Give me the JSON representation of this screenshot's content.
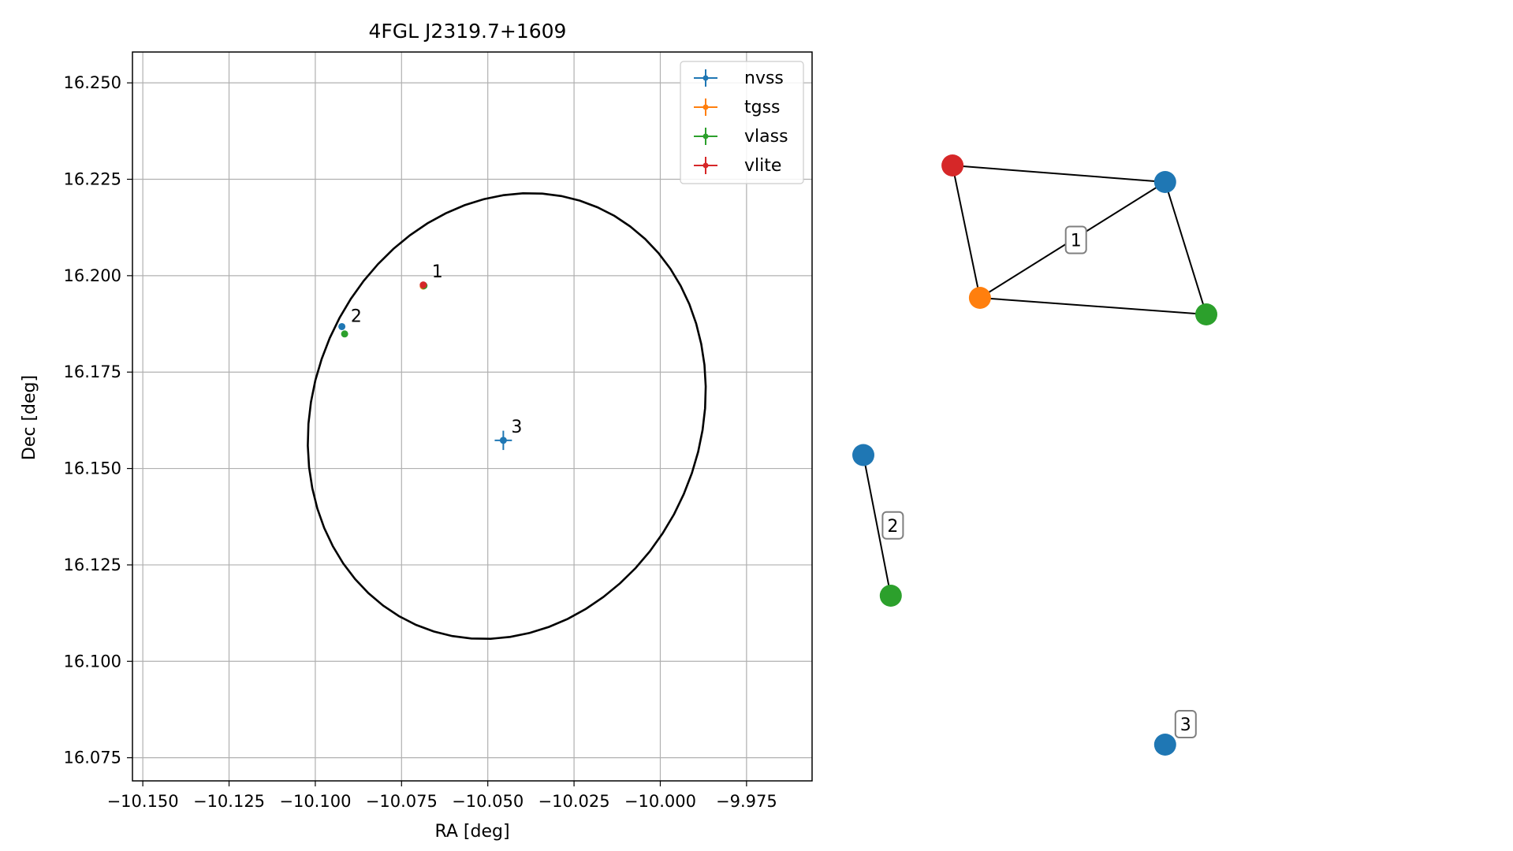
{
  "chart_data": [
    {
      "type": "scatter",
      "title": "4FGL J2319.7+1609",
      "xlabel": "RA [deg]",
      "ylabel": "Dec [deg]",
      "xlim": [
        -10.153,
        -9.956
      ],
      "ylim": [
        16.069,
        16.258
      ],
      "x_ticks": [
        -10.15,
        -10.125,
        -10.1,
        -10.075,
        -10.05,
        -10.025,
        -10.0,
        -9.975
      ],
      "x_tick_labels": [
        "−10.150",
        "−10.125",
        "−10.100",
        "−10.075",
        "−10.050",
        "−10.025",
        "−10.000",
        "−9.975"
      ],
      "y_ticks": [
        16.075,
        16.1,
        16.125,
        16.15,
        16.175,
        16.2,
        16.225,
        16.25
      ],
      "y_tick_labels": [
        "16.075",
        "16.100",
        "16.125",
        "16.150",
        "16.175",
        "16.200",
        "16.225",
        "16.250"
      ],
      "grid": true,
      "legend_position": "top-right",
      "series": [
        {
          "name": "nvss",
          "color": "#1f77b4",
          "points": [
            {
              "x": -10.0455,
              "y": 16.1573,
              "xerr": 0.0025,
              "yerr": 0.0025
            },
            {
              "x": -10.0923,
              "y": 16.1868,
              "xerr": 0.0004,
              "yerr": 0.0004
            },
            {
              "x": -10.0686,
              "y": 16.1975,
              "xerr": 0.0002,
              "yerr": 0.0002
            }
          ]
        },
        {
          "name": "tgss",
          "color": "#ff7f0e",
          "points": [
            {
              "x": -10.0687,
              "y": 16.1973,
              "xerr": 0.0002,
              "yerr": 0.0002
            }
          ]
        },
        {
          "name": "vlass",
          "color": "#2ca02c",
          "points": [
            {
              "x": -10.0915,
              "y": 16.1849,
              "xerr": 0.0003,
              "yerr": 0.0003
            },
            {
              "x": -10.0685,
              "y": 16.1974,
              "xerr": 0.0002,
              "yerr": 0.0002
            }
          ]
        },
        {
          "name": "vlite",
          "color": "#d62728",
          "points": [
            {
              "x": -10.0687,
              "y": 16.1976,
              "xerr": 0.0002,
              "yerr": 0.0002
            }
          ]
        }
      ],
      "annotations": [
        {
          "text": "1",
          "x": -10.0685,
          "y": 16.1975
        },
        {
          "text": "2",
          "x": -10.092,
          "y": 16.186
        },
        {
          "text": "3",
          "x": -10.0455,
          "y": 16.1573
        }
      ],
      "ellipse": {
        "ra_center": -10.0445,
        "dec_center": 16.1636,
        "semi_major": 0.06,
        "semi_minor": 0.053,
        "angle_deg": 55,
        "color": "#000000"
      }
    },
    {
      "type": "network",
      "groups": [
        {
          "label": "1",
          "nodes": [
            {
              "color": "#d62728",
              "x": 0.13,
              "y": 0.2
            },
            {
              "color": "#1f77b4",
              "x": 0.44,
              "y": 0.22
            },
            {
              "color": "#ff7f0e",
              "x": 0.17,
              "y": 0.36
            },
            {
              "color": "#2ca02c",
              "x": 0.5,
              "y": 0.38
            }
          ],
          "edges": [
            [
              0,
              1
            ],
            [
              0,
              2
            ],
            [
              2,
              1
            ],
            [
              2,
              3
            ],
            [
              1,
              3
            ]
          ]
        },
        {
          "label": "2",
          "nodes": [
            {
              "color": "#1f77b4",
              "x": 0.0,
              "y": 0.55
            },
            {
              "color": "#2ca02c",
              "x": 0.04,
              "y": 0.72
            }
          ],
          "edges": [
            [
              0,
              1
            ]
          ]
        },
        {
          "label": "3",
          "nodes": [
            {
              "color": "#1f77b4",
              "x": 0.44,
              "y": 0.9
            }
          ],
          "edges": []
        }
      ]
    }
  ]
}
